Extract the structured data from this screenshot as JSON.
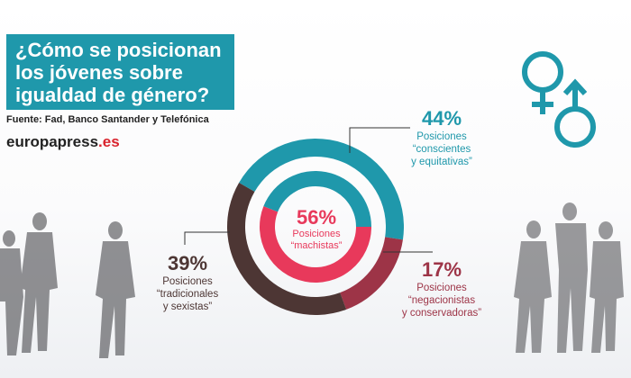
{
  "header": {
    "title_lines": [
      "¿Cómo se posicionan",
      "los jóvenes sobre",
      "igualdad de género?"
    ],
    "source": "Fuente: Fad, Banco Santander y Telefónica",
    "brand_main": "europapress",
    "brand_suffix": ".es"
  },
  "icons": [
    "female-symbol-icon",
    "male-symbol-icon"
  ],
  "colors": {
    "teal": "#1f98ab",
    "brown": "#4d3634",
    "maroon": "#9d3447",
    "pink": "#e8395b"
  },
  "chart_data": {
    "type": "pie",
    "title": "¿Cómo se posicionan los jóvenes sobre igualdad de género?",
    "outer_ring": [
      {
        "label": "Posiciones “conscientes y equitativas”",
        "value": 44,
        "pct_label": "44%",
        "color": "#1f98ab"
      },
      {
        "label": "Posiciones “negacionistas y conservadoras”",
        "value": 17,
        "pct_label": "17%",
        "color": "#9d3447"
      },
      {
        "label": "Posiciones “tradicionales y sexistas”",
        "value": 39,
        "pct_label": "39%",
        "color": "#4d3634"
      }
    ],
    "inner_ring": [
      {
        "label": "Posiciones “machistas”",
        "value": 56,
        "pct_label": "56%",
        "color": "#e8395b"
      },
      {
        "label": "Posiciones “conscientes y equitativas”",
        "value": 44,
        "color": "#1f98ab"
      }
    ]
  },
  "annotations": {
    "conscientes": {
      "pct": "44%",
      "line1": "Posiciones",
      "line2": "“conscientes",
      "line3": "y equitativas”"
    },
    "tradicionales": {
      "pct": "39%",
      "line1": "Posiciones",
      "line2": "“tradicionales",
      "line3": "y sexistas”"
    },
    "negacionistas": {
      "pct": "17%",
      "line1": "Posiciones",
      "line2": "“negacionistas",
      "line3": "y conservadoras”"
    },
    "machistas": {
      "pct": "56%",
      "line1": "Posiciones",
      "line2": "“machistas”"
    }
  }
}
